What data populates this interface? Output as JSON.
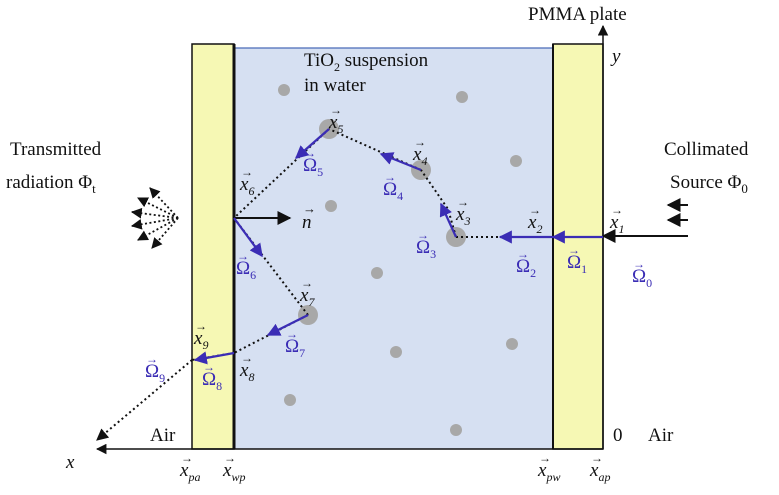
{
  "labels": {
    "pmma": "PMMA plate",
    "y_axis": "y",
    "x_axis": "x",
    "suspension_line1": "TiO",
    "suspension_sub": "2",
    "suspension_line1_rest": " suspension",
    "suspension_line2": "in water",
    "transmitted_line1": "Transmitted",
    "transmitted_line2": "radiation Φ",
    "transmitted_sub": "t",
    "collimated_line1": "Collimated",
    "collimated_line2": "Source Φ",
    "collimated_sub": "0",
    "air_left": "Air",
    "air_right": "Air",
    "zero": "0",
    "normal": "n"
  },
  "positions": [
    {
      "base": "x",
      "sub": "1"
    },
    {
      "base": "x",
      "sub": "2"
    },
    {
      "base": "x",
      "sub": "3"
    },
    {
      "base": "x",
      "sub": "4"
    },
    {
      "base": "x",
      "sub": "5"
    },
    {
      "base": "x",
      "sub": "6"
    },
    {
      "base": "x",
      "sub": "7"
    },
    {
      "base": "x",
      "sub": "8"
    },
    {
      "base": "x",
      "sub": "9"
    }
  ],
  "directions": [
    {
      "base": "Ω",
      "sub": "0"
    },
    {
      "base": "Ω",
      "sub": "1"
    },
    {
      "base": "Ω",
      "sub": "2"
    },
    {
      "base": "Ω",
      "sub": "3"
    },
    {
      "base": "Ω",
      "sub": "4"
    },
    {
      "base": "Ω",
      "sub": "5"
    },
    {
      "base": "Ω",
      "sub": "6"
    },
    {
      "base": "Ω",
      "sub": "7"
    },
    {
      "base": "Ω",
      "sub": "8"
    },
    {
      "base": "Ω",
      "sub": "9"
    }
  ],
  "boundaries": [
    {
      "base": "x",
      "sub": "pa"
    },
    {
      "base": "x",
      "sub": "wp"
    },
    {
      "base": "x",
      "sub": "pw"
    },
    {
      "base": "x",
      "sub": "ap"
    }
  ],
  "colors": {
    "plate": "#f6f8b4",
    "water": "#d6e0f2",
    "particle": "#a8a8a8",
    "direction_arrow": "#3b2db5",
    "line": "#111111"
  }
}
